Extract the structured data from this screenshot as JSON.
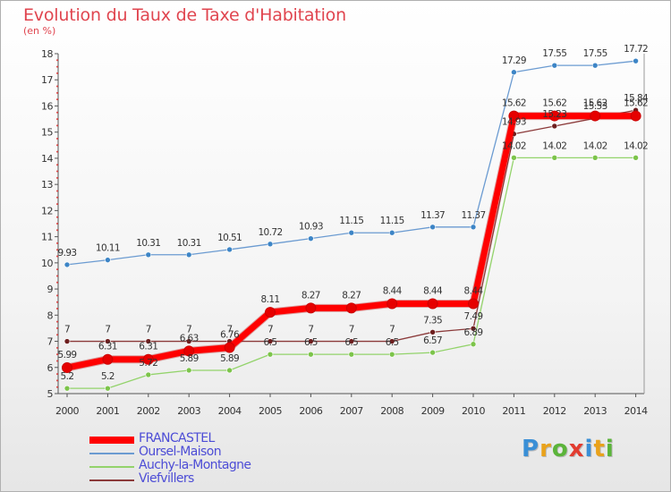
{
  "title": "Evolution du Taux de Taxe d'Habitation",
  "unit": "(en %)",
  "brand": {
    "letters": [
      "P",
      "r",
      "o",
      "x",
      "i",
      "t",
      "i"
    ],
    "colors": [
      "#3a8fd6",
      "#e9a21b",
      "#5bb43a",
      "#e23c30",
      "#3a8fd6",
      "#e9a21b",
      "#5bb43a"
    ]
  },
  "chart_data": {
    "type": "line",
    "categories": [
      "2000",
      "2001",
      "2002",
      "2003",
      "2004",
      "2005",
      "2006",
      "2007",
      "2008",
      "2009",
      "2010",
      "2011",
      "2012",
      "2013",
      "2014"
    ],
    "ylim": [
      5,
      18
    ],
    "yticks": [
      "5",
      "6",
      "7",
      "8",
      "9",
      "10",
      "11",
      "12",
      "13",
      "14",
      "15",
      "16",
      "17",
      "18"
    ],
    "grid": false,
    "legend_position": "bottom-left",
    "series": [
      {
        "name": "FRANCASTEL",
        "color": "#ff0000",
        "marker": "#e60000",
        "values": [
          5.99,
          6.31,
          6.31,
          6.63,
          6.76,
          8.11,
          8.27,
          8.27,
          8.44,
          8.44,
          8.44,
          15.62,
          15.62,
          15.62,
          15.62
        ],
        "labels": [
          "5.99",
          "6.31",
          "6.31",
          "6.63",
          "6.76",
          "8.11",
          "8.27",
          "8.27",
          "8.44",
          "8.44",
          "8.44",
          "15.62",
          "15.62",
          "15.62",
          "15.62"
        ]
      },
      {
        "name": "Oursel-Maison",
        "color": "#6b9bd1",
        "marker": "#3d85c6",
        "values": [
          9.93,
          10.11,
          10.31,
          10.31,
          10.51,
          10.72,
          10.93,
          11.15,
          11.15,
          11.37,
          11.37,
          17.29,
          17.55,
          17.55,
          17.72
        ],
        "labels": [
          "9.93",
          "10.11",
          "10.31",
          "10.31",
          "10.51",
          "10.72",
          "10.93",
          "11.15",
          "11.15",
          "11.37",
          "11.37",
          "17.29",
          "17.55",
          "17.55",
          "17.72"
        ]
      },
      {
        "name": "Auchy-la-Montagne",
        "color": "#93d36b",
        "marker": "#7cc44a",
        "values": [
          5.2,
          5.2,
          5.72,
          5.89,
          5.89,
          6.5,
          6.5,
          6.5,
          6.5,
          6.57,
          6.89,
          14.02,
          14.02,
          14.02,
          14.02
        ],
        "labels": [
          "5.2",
          "5.2",
          "5.72",
          "5.89",
          "5.89",
          "6.5",
          "6.5",
          "6.5",
          "6.5",
          "6.57",
          "6.89",
          "14.02",
          "14.02",
          "14.02",
          "14.02"
        ]
      },
      {
        "name": "Viefvillers",
        "color": "#8b3a3a",
        "marker": "#6e1f1f",
        "values": [
          7,
          7,
          7,
          7,
          7,
          7,
          7,
          7,
          7,
          7.35,
          7.49,
          14.93,
          15.23,
          15.53,
          15.84
        ],
        "labels": [
          "7",
          "7",
          "7",
          "7",
          "7",
          "7",
          "7",
          "7",
          "7",
          "7.35",
          "7.49",
          "14.93",
          "15.23",
          "15.53",
          "15.84"
        ]
      }
    ]
  }
}
